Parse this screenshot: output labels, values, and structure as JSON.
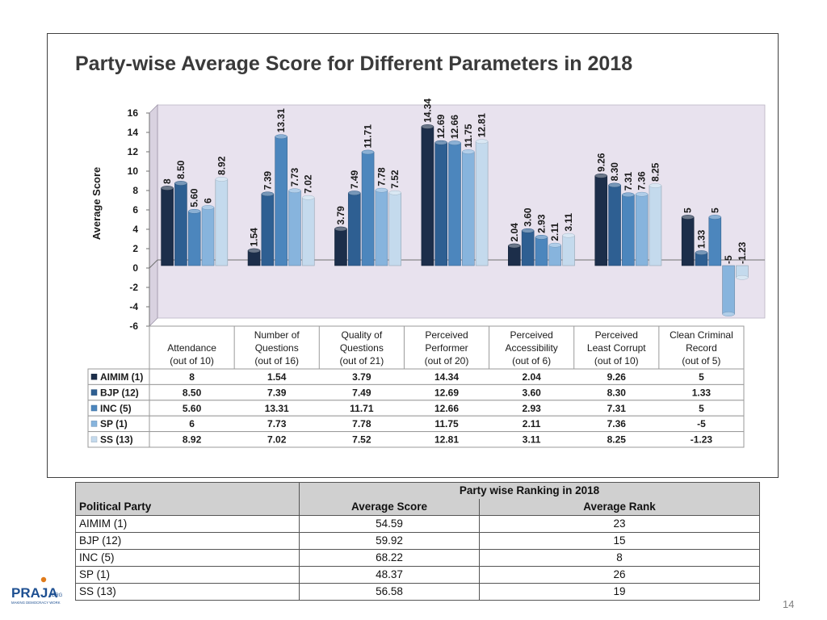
{
  "chart_data": {
    "type": "bar",
    "title": "Party-wise Average Score for Different Parameters in 2018",
    "ylabel": "Average Score",
    "ylim": [
      -6,
      16
    ],
    "yticks": [
      16,
      14,
      12,
      10,
      8,
      6,
      4,
      2,
      0,
      -2,
      -4,
      -6
    ],
    "grid": false,
    "legend": "table-left",
    "categories": [
      [
        "Attendance",
        "(out of 10)"
      ],
      [
        "Number of",
        "Questions",
        "(out of 16)"
      ],
      [
        "Quality of",
        "Questions",
        "(out of 21)"
      ],
      [
        "Perceived",
        "Performer",
        "(out of 20)"
      ],
      [
        "Perceived",
        "Accessibility",
        "(out of 6)"
      ],
      [
        "Perceived",
        "Least Corrupt",
        "(out of 10)"
      ],
      [
        "Clean Criminal",
        "Record",
        "(out of 5)"
      ]
    ],
    "series": [
      {
        "name": "AIMIM (1)",
        "color": "#1c2e4a",
        "values": [
          8,
          1.54,
          3.79,
          14.34,
          2.04,
          9.26,
          5
        ],
        "labels": [
          "8",
          "1.54",
          "3.79",
          "14.34",
          "2.04",
          "9.26",
          "5"
        ]
      },
      {
        "name": "BJP (12)",
        "color": "#2e5f92",
        "values": [
          8.5,
          7.39,
          7.49,
          12.69,
          3.6,
          8.3,
          1.33
        ],
        "labels": [
          "8.50",
          "7.39",
          "7.49",
          "12.69",
          "3.60",
          "8.30",
          "1.33"
        ]
      },
      {
        "name": "INC (5)",
        "color": "#4c86bd",
        "values": [
          5.6,
          13.31,
          11.71,
          12.66,
          2.93,
          7.31,
          5
        ],
        "labels": [
          "5.60",
          "13.31",
          "11.71",
          "12.66",
          "2.93",
          "7.31",
          "5"
        ]
      },
      {
        "name": "SP (1)",
        "color": "#87b4dd",
        "values": [
          6,
          7.73,
          7.78,
          11.75,
          2.11,
          7.36,
          -5
        ],
        "labels": [
          "6",
          "7.73",
          "7.78",
          "11.75",
          "2.11",
          "7.36",
          "-5"
        ]
      },
      {
        "name": "SS (13)",
        "color": "#c4daed",
        "values": [
          8.92,
          7.02,
          7.52,
          12.81,
          3.11,
          8.25,
          -1.23
        ],
        "labels": [
          "8.92",
          "7.02",
          "7.52",
          "12.81",
          "3.11",
          "8.25",
          "-1.23"
        ]
      }
    ]
  },
  "ranking_table": {
    "title": "Party wise Ranking in 2018",
    "headers": [
      "Political Party",
      "Average Score",
      "Average Rank"
    ],
    "rows": [
      [
        "AIMIM (1)",
        "54.59",
        "23"
      ],
      [
        "BJP (12)",
        "59.92",
        "15"
      ],
      [
        "INC (5)",
        "68.22",
        "8"
      ],
      [
        "SP (1)",
        "48.37",
        "26"
      ],
      [
        "SS (13)",
        "56.58",
        "19"
      ]
    ]
  },
  "logo": {
    "text": "PRAJA",
    "suffix": ".ORG",
    "tagline": "MAKING DEMOCRACY WORK"
  },
  "page_number": "14"
}
